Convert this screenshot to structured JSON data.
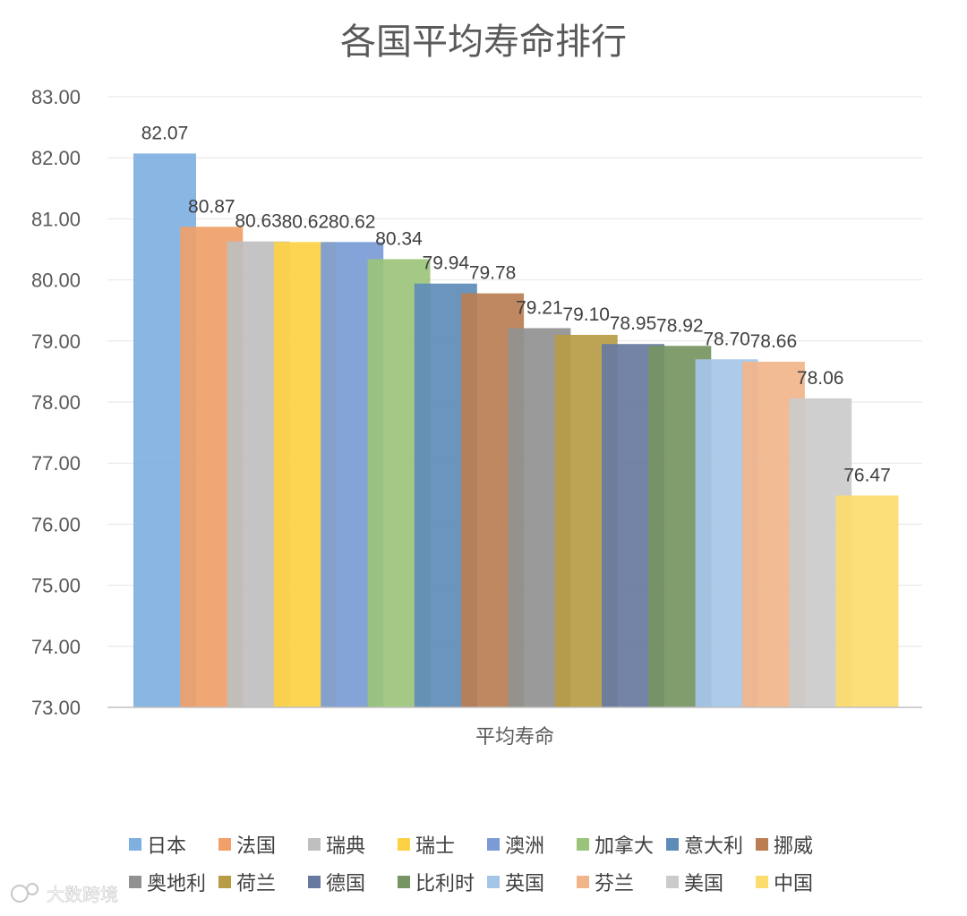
{
  "watermark": "大数跨境",
  "chart_data": {
    "type": "bar",
    "title": "各国平均寿命排行",
    "categories": [
      "平均寿命"
    ],
    "ylim": [
      73,
      83
    ],
    "y_ticks": [
      "73.00",
      "74.00",
      "75.00",
      "76.00",
      "77.00",
      "78.00",
      "79.00",
      "80.00",
      "81.00",
      "82.00",
      "83.00"
    ],
    "grid": true,
    "legend_position": "bottom",
    "series": [
      {
        "name": "日本",
        "value": 82.07,
        "label": "82.07",
        "color": "#7fb0e0"
      },
      {
        "name": "法国",
        "value": 80.87,
        "label": "80.87",
        "color": "#f0a068"
      },
      {
        "name": "瑞典",
        "value": 80.63,
        "label": "80.63",
        "color": "#bfbfbf"
      },
      {
        "name": "瑞士",
        "value": 80.62,
        "label": "80.62",
        "color": "#fdd144"
      },
      {
        "name": "澳洲",
        "value": 80.62,
        "label": "80.62",
        "color": "#7a9bd6"
      },
      {
        "name": "加拿大",
        "value": 80.34,
        "label": "80.34",
        "color": "#9bc47b"
      },
      {
        "name": "意大利",
        "value": 79.94,
        "label": "79.94",
        "color": "#5f8cb7"
      },
      {
        "name": "挪威",
        "value": 79.78,
        "label": "79.78",
        "color": "#ba7e52"
      },
      {
        "name": "奥地利",
        "value": 79.21,
        "label": "79.21",
        "color": "#919191"
      },
      {
        "name": "荷兰",
        "value": 79.1,
        "label": "79.10",
        "color": "#b79b45"
      },
      {
        "name": "德国",
        "value": 78.95,
        "label": "78.95",
        "color": "#67799f"
      },
      {
        "name": "比利时",
        "value": 78.92,
        "label": "78.92",
        "color": "#769562"
      },
      {
        "name": "英国",
        "value": 78.7,
        "label": "78.70",
        "color": "#a5c5e8"
      },
      {
        "name": "芬兰",
        "value": 78.66,
        "label": "78.66",
        "color": "#f2b58b"
      },
      {
        "name": "美国",
        "value": 78.06,
        "label": "78.06",
        "color": "#cbcbcb"
      },
      {
        "name": "中国",
        "value": 76.47,
        "label": "76.47",
        "color": "#fddc6e"
      }
    ]
  }
}
